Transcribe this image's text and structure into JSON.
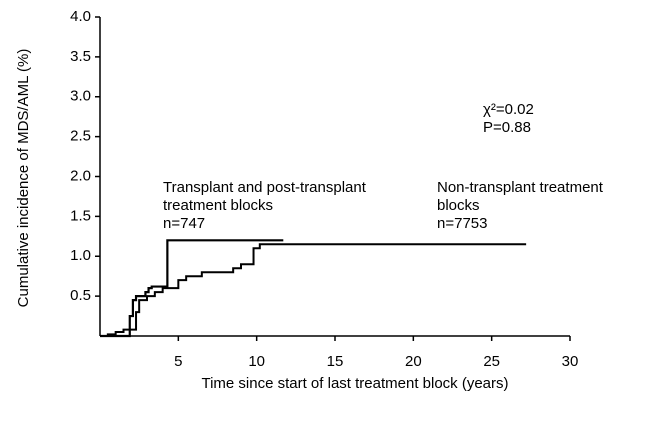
{
  "chart_data": {
    "type": "step",
    "xlabel": "Time since start of last treatment block (years)",
    "ylabel": "Cumulative incidence of MDS/AML (%)",
    "xlim": [
      0,
      30
    ],
    "xticks": [
      5,
      10,
      15,
      20,
      25,
      30
    ],
    "ylim": [
      0,
      4
    ],
    "yticks": [
      0.5,
      {
        "value": 1,
        "label": "1.0"
      },
      1.5,
      {
        "value": 2,
        "label": "2.0"
      },
      2.5,
      {
        "value": 3,
        "label": "3.0"
      },
      3.5,
      {
        "value": 4,
        "label": "4.0"
      }
    ],
    "series": [
      {
        "color": "#000000",
        "x": [
          0,
          1.0,
          1.9,
          2.1,
          2.3,
          2.9,
          3.1,
          3.3,
          4.3,
          11.7
        ],
        "values": [
          0,
          0,
          0.25,
          0.45,
          0.5,
          0.55,
          0.6,
          0.62,
          1.2,
          1.2
        ]
      },
      {
        "color": "#000000",
        "x": [
          0,
          0.5,
          1.0,
          1.5,
          2.3,
          2.5,
          3.0,
          3.5,
          4.0,
          5.0,
          5.5,
          6.5,
          8.5,
          9.0,
          9.8,
          10.2,
          27.2
        ],
        "values": [
          0,
          0.02,
          0.05,
          0.08,
          0.3,
          0.45,
          0.5,
          0.55,
          0.6,
          0.7,
          0.75,
          0.8,
          0.85,
          0.9,
          1.1,
          1.15,
          1.15
        ]
      }
    ],
    "annotations": [
      {
        "lines": [
          "Transplant and post-transplant",
          "treatment blocks",
          "n=747"
        ]
      },
      {
        "lines": [
          "Non-transplant treatment",
          "blocks",
          "n=7753"
        ]
      },
      {
        "lines": [
          "χ²=0.02",
          "P=0.88"
        ]
      }
    ]
  }
}
